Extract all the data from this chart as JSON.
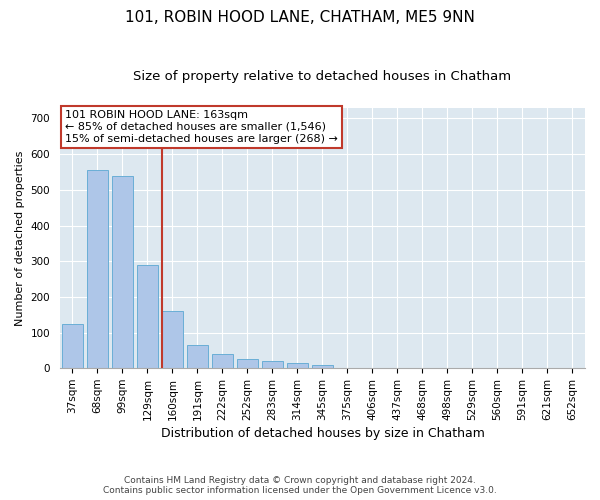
{
  "title1": "101, ROBIN HOOD LANE, CHATHAM, ME5 9NN",
  "title2": "Size of property relative to detached houses in Chatham",
  "xlabel": "Distribution of detached houses by size in Chatham",
  "ylabel": "Number of detached properties",
  "footer1": "Contains HM Land Registry data © Crown copyright and database right 2024.",
  "footer2": "Contains public sector information licensed under the Open Government Licence v3.0.",
  "categories": [
    "37sqm",
    "68sqm",
    "99sqm",
    "129sqm",
    "160sqm",
    "191sqm",
    "222sqm",
    "252sqm",
    "283sqm",
    "314sqm",
    "345sqm",
    "375sqm",
    "406sqm",
    "437sqm",
    "468sqm",
    "498sqm",
    "529sqm",
    "560sqm",
    "591sqm",
    "621sqm",
    "652sqm"
  ],
  "values": [
    125,
    555,
    540,
    290,
    160,
    65,
    40,
    25,
    20,
    15,
    10,
    0,
    0,
    0,
    0,
    0,
    0,
    0,
    0,
    0,
    0
  ],
  "bar_color": "#aec6e8",
  "bar_edge_color": "#6aaed6",
  "vline_color": "#c0392b",
  "annotation_line1": "101 ROBIN HOOD LANE: 163sqm",
  "annotation_line2": "← 85% of detached houses are smaller (1,546)",
  "annotation_line3": "15% of semi-detached houses are larger (268) →",
  "annotation_box_color": "#c0392b",
  "background_color": "#dde8f0",
  "ylim": [
    0,
    730
  ],
  "yticks": [
    0,
    100,
    200,
    300,
    400,
    500,
    600,
    700
  ],
  "title1_fontsize": 11,
  "title2_fontsize": 9.5,
  "xlabel_fontsize": 9,
  "ylabel_fontsize": 8,
  "tick_fontsize": 7.5,
  "annotation_fontsize": 8
}
